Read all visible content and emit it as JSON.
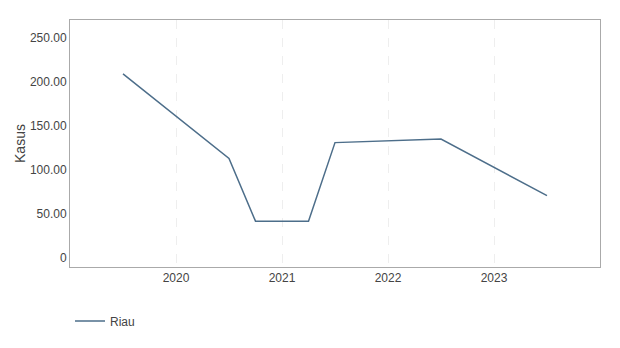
{
  "chart_data": {
    "type": "line",
    "x": [
      2019.5,
      2020.5,
      2020.75,
      2021.25,
      2021.5,
      2022.5,
      2023.5
    ],
    "series": [
      {
        "name": "Riau",
        "color": "#4d6e8a",
        "values": [
          209,
          113,
          42,
          42,
          131,
          135,
          71
        ]
      }
    ],
    "ylabel": "Kasus",
    "xlim": [
      2019.0,
      2024.0
    ],
    "xticks": [
      2020,
      2021,
      2022,
      2023
    ],
    "ylim": [
      -10,
      270
    ],
    "yticks": [
      0,
      {
        "value": 50,
        "label": "50.00"
      },
      {
        "value": 100,
        "label": "100.00"
      },
      {
        "value": 150,
        "label": "150.00"
      },
      {
        "value": 200,
        "label": "200.00"
      },
      {
        "value": 250,
        "label": "250.00"
      }
    ],
    "grid": "x",
    "legend": "bottom"
  }
}
